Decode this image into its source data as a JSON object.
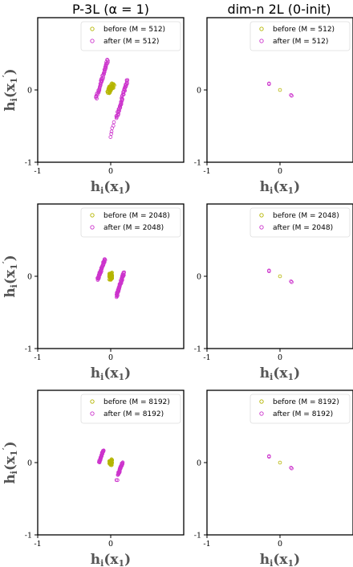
{
  "column_titles": [
    "P-3L (α = 1)",
    "dim-n 2L (0-init)"
  ],
  "colors": {
    "before": "#b5b500",
    "after": "#cc33cc"
  },
  "chart_data": [
    {
      "type": "scatter",
      "panel": "r1c1",
      "xlabel": "h_i(x_1)",
      "ylabel": "h_i(x_1')",
      "xlim": [
        -1,
        1
      ],
      "ylim": [
        -1,
        1
      ],
      "xticks": [
        "-1",
        "0"
      ],
      "yticks": [
        "-1",
        "0"
      ],
      "legend_position": "top-right",
      "series": [
        {
          "name": "before (M = 512)",
          "role": "before",
          "kind": "clusters",
          "clusters": [
            {
              "x0": -0.03,
              "y0": -0.03,
              "x1": 0.03,
              "y1": 0.08,
              "spread": 0.025,
              "n": 60
            }
          ]
        },
        {
          "name": "after (M = 512)",
          "role": "after",
          "kind": "clusters",
          "clusters": [
            {
              "x0": -0.2,
              "y0": -0.12,
              "x1": -0.04,
              "y1": 0.42,
              "spread": 0.01,
              "n": 55
            },
            {
              "x0": 0.08,
              "y0": -0.38,
              "x1": 0.23,
              "y1": 0.14,
              "spread": 0.01,
              "n": 55
            },
            {
              "x0": 0.0,
              "y0": -0.65,
              "x1": 0.04,
              "y1": -0.45,
              "spread": 0.005,
              "n": 6
            }
          ]
        }
      ]
    },
    {
      "type": "scatter",
      "panel": "r1c2",
      "xlabel": "h_i(x_1)",
      "ylabel": "",
      "xlim": [
        -1,
        1
      ],
      "ylim": [
        -1,
        1
      ],
      "xticks": [
        "-1",
        "0"
      ],
      "yticks": [
        "-1",
        "0"
      ],
      "legend_position": "top-right",
      "series": [
        {
          "name": "before (M = 512)",
          "role": "before",
          "kind": "points",
          "x": [
            0.0
          ],
          "y": [
            0.0
          ]
        },
        {
          "name": "after (M = 512)",
          "role": "after",
          "kind": "points",
          "x": [
            -0.15,
            -0.15,
            0.15,
            0.16
          ],
          "y": [
            0.08,
            0.09,
            -0.07,
            -0.08
          ]
        }
      ]
    },
    {
      "type": "scatter",
      "panel": "r2c1",
      "xlabel": "h_i(x_1)",
      "ylabel": "h_i(x_1')",
      "xlim": [
        -1,
        1
      ],
      "ylim": [
        -1,
        1
      ],
      "xticks": [
        "-1",
        "0"
      ],
      "yticks": [
        "-1",
        "0"
      ],
      "legend_position": "top-right",
      "series": [
        {
          "name": "before (M = 2048)",
          "role": "before",
          "kind": "clusters",
          "clusters": [
            {
              "x0": 0.0,
              "y0": -0.04,
              "x1": 0.0,
              "y1": 0.04,
              "spread": 0.02,
              "n": 60
            }
          ]
        },
        {
          "name": "after (M = 2048)",
          "role": "after",
          "kind": "clusters",
          "clusters": [
            {
              "x0": -0.18,
              "y0": -0.05,
              "x1": -0.08,
              "y1": 0.24,
              "spread": 0.01,
              "n": 60
            },
            {
              "x0": 0.08,
              "y0": -0.28,
              "x1": 0.18,
              "y1": 0.05,
              "spread": 0.01,
              "n": 60
            }
          ]
        }
      ]
    },
    {
      "type": "scatter",
      "panel": "r2c2",
      "xlabel": "h_i(x_1)",
      "ylabel": "",
      "xlim": [
        -1,
        1
      ],
      "ylim": [
        -1,
        1
      ],
      "xticks": [
        "-1",
        "0"
      ],
      "yticks": [
        "-1",
        "0"
      ],
      "legend_position": "top-right",
      "series": [
        {
          "name": "before (M = 2048)",
          "role": "before",
          "kind": "points",
          "x": [
            0.0
          ],
          "y": [
            0.0
          ]
        },
        {
          "name": "after (M = 2048)",
          "role": "after",
          "kind": "points",
          "x": [
            -0.15,
            -0.15,
            0.15,
            0.16
          ],
          "y": [
            0.07,
            0.08,
            -0.07,
            -0.08
          ]
        }
      ]
    },
    {
      "type": "scatter",
      "panel": "r3c1",
      "xlabel": "h_i(x_1)",
      "ylabel": "h_i(x_1')",
      "xlim": [
        -1,
        1
      ],
      "ylim": [
        -1,
        1
      ],
      "xticks": [
        "-1",
        "0"
      ],
      "yticks": [
        "-1",
        "0"
      ],
      "legend_position": "top-right",
      "series": [
        {
          "name": "before (M = 8192)",
          "role": "before",
          "kind": "clusters",
          "clusters": [
            {
              "x0": 0.0,
              "y0": -0.03,
              "x1": 0.0,
              "y1": 0.03,
              "spread": 0.02,
              "n": 40
            }
          ]
        },
        {
          "name": "after (M = 8192)",
          "role": "after",
          "kind": "clusters",
          "clusters": [
            {
              "x0": -0.16,
              "y0": 0.0,
              "x1": -0.1,
              "y1": 0.17,
              "spread": 0.008,
              "n": 35
            },
            {
              "x0": 0.1,
              "y0": -0.17,
              "x1": 0.16,
              "y1": 0.0,
              "spread": 0.008,
              "n": 35
            },
            {
              "x0": 0.08,
              "y0": -0.24,
              "x1": 0.09,
              "y1": -0.24,
              "spread": 0.003,
              "n": 2
            }
          ]
        }
      ]
    },
    {
      "type": "scatter",
      "panel": "r3c2",
      "xlabel": "h_i(x_1)",
      "ylabel": "",
      "xlim": [
        -1,
        1
      ],
      "ylim": [
        -1,
        1
      ],
      "xticks": [
        "-1",
        "0"
      ],
      "yticks": [
        "-1",
        "0"
      ],
      "legend_position": "top-right",
      "series": [
        {
          "name": "before (M = 8192)",
          "role": "before",
          "kind": "points",
          "x": [
            0.0
          ],
          "y": [
            0.0
          ]
        },
        {
          "name": "after (M = 8192)",
          "role": "after",
          "kind": "points",
          "x": [
            -0.15,
            -0.15,
            0.15,
            0.16
          ],
          "y": [
            0.08,
            0.09,
            -0.07,
            -0.08
          ]
        }
      ]
    }
  ]
}
